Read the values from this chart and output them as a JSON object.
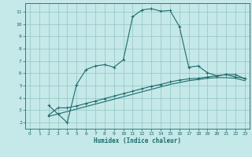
{
  "title": "",
  "xlabel": "Humidex (Indice chaleur)",
  "ylabel": "",
  "bg_color": "#c5e8e8",
  "grid_color": "#93c5c5",
  "line_color": "#1e6b6b",
  "xlim": [
    -0.5,
    23.5
  ],
  "ylim": [
    1.5,
    11.7
  ],
  "xticks": [
    0,
    1,
    2,
    3,
    4,
    5,
    6,
    7,
    8,
    9,
    10,
    11,
    12,
    13,
    14,
    15,
    16,
    17,
    18,
    19,
    20,
    21,
    22,
    23
  ],
  "yticks": [
    2,
    3,
    4,
    5,
    6,
    7,
    8,
    9,
    10,
    11
  ],
  "line1_x": [
    2,
    3,
    4,
    5,
    6,
    7,
    8,
    9,
    10,
    11,
    12,
    13,
    14,
    15,
    16,
    17,
    18,
    19,
    20,
    21,
    22,
    23
  ],
  "line1_y": [
    3.4,
    2.7,
    2.0,
    5.1,
    6.3,
    6.6,
    6.7,
    6.5,
    7.1,
    10.6,
    11.15,
    11.25,
    11.05,
    11.1,
    9.8,
    6.5,
    6.6,
    6.05,
    5.8,
    5.9,
    5.7,
    5.6
  ],
  "line2_x": [
    2,
    3,
    4,
    5,
    6,
    7,
    8,
    9,
    10,
    11,
    12,
    13,
    14,
    15,
    16,
    17,
    18,
    19,
    20,
    21,
    22,
    23
  ],
  "line2_y": [
    2.6,
    3.2,
    3.2,
    3.35,
    3.55,
    3.75,
    3.95,
    4.15,
    4.35,
    4.55,
    4.75,
    4.95,
    5.1,
    5.3,
    5.45,
    5.55,
    5.6,
    5.7,
    5.8,
    5.9,
    5.9,
    5.55
  ],
  "line3_x": [
    2,
    3,
    4,
    5,
    6,
    7,
    8,
    9,
    10,
    11,
    12,
    13,
    14,
    15,
    16,
    17,
    18,
    19,
    20,
    21,
    22,
    23
  ],
  "line3_y": [
    2.5,
    2.7,
    2.9,
    3.1,
    3.3,
    3.5,
    3.7,
    3.9,
    4.1,
    4.3,
    4.5,
    4.7,
    4.9,
    5.1,
    5.25,
    5.4,
    5.5,
    5.6,
    5.65,
    5.65,
    5.6,
    5.4
  ]
}
